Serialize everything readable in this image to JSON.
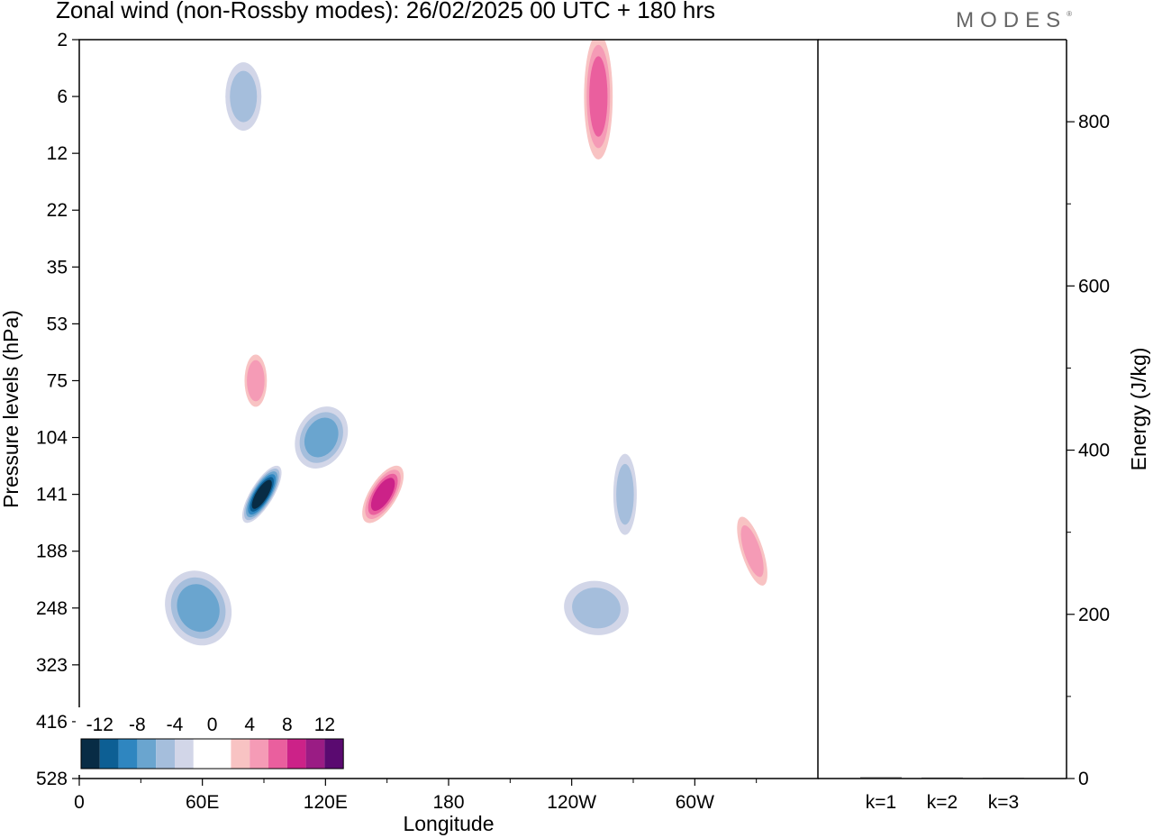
{
  "header": {
    "title": "Zonal wind (non-Rossby modes):  26/02/2025  00 UTC  + 180 hrs",
    "brand": "MODES",
    "brand_mark": "®"
  },
  "chart_data": [
    {
      "type": "heatmap",
      "title": "Zonal wind (non-Rossby modes):  26/02/2025  00 UTC  + 180 hrs",
      "xlabel": "Longitude",
      "ylabel": "Pressure levels (hPa)",
      "x_ticks": [
        "0",
        "60E",
        "120E",
        "180",
        "120W",
        "60W"
      ],
      "x_tick_degrees": [
        0,
        60,
        120,
        180,
        240,
        300
      ],
      "xlim": [
        0,
        360
      ],
      "y_ticks": [
        "2",
        "6",
        "12",
        "22",
        "35",
        "53",
        "75",
        "104",
        "141",
        "188",
        "248",
        "323",
        "416",
        "528"
      ],
      "y_reversed": true,
      "colorbar": {
        "labels": [
          "-12",
          "-8",
          "-4",
          "0",
          "4",
          "8",
          "12"
        ],
        "colors": [
          "#082c45",
          "#0d5f94",
          "#2f86c0",
          "#6aa5cf",
          "#a5bedc",
          "#d2d6e8",
          "#ffffff",
          "#ffffff",
          "#f8c3c3",
          "#f59bb6",
          "#ea5f9e",
          "#cc2288",
          "#9a1c84",
          "#5a0a70"
        ]
      },
      "features": [
        {
          "sign": "negative",
          "max_abs": 14,
          "lon": 89,
          "level": "141"
        },
        {
          "sign": "negative",
          "max_abs": 8,
          "lon": 58,
          "level": "248"
        },
        {
          "sign": "negative",
          "max_abs": 8,
          "lon": 118,
          "level": "104"
        },
        {
          "sign": "negative",
          "max_abs": 6,
          "lon": 80,
          "level": "6"
        },
        {
          "sign": "negative",
          "max_abs": 6,
          "lon": 266,
          "level": "141"
        },
        {
          "sign": "negative",
          "max_abs": 6,
          "lon": 252,
          "level": "248"
        },
        {
          "sign": "positive",
          "max_abs": 10,
          "lon": 148,
          "level": "141"
        },
        {
          "sign": "positive",
          "max_abs": 8,
          "lon": 253,
          "level": "6"
        },
        {
          "sign": "positive",
          "max_abs": 7,
          "lon": 86,
          "level": "75"
        },
        {
          "sign": "positive",
          "max_abs": 6,
          "lon": 328,
          "level": "188"
        }
      ]
    },
    {
      "type": "bar",
      "ylabel": "Energy (J/kg)",
      "categories": [
        "k=1",
        "k=2",
        "k=3"
      ],
      "values": [
        1.5,
        1.2,
        1.0
      ],
      "ylim": [
        0,
        900
      ],
      "y_ticks": [
        "0",
        "200",
        "400",
        "600",
        "800"
      ]
    }
  ]
}
